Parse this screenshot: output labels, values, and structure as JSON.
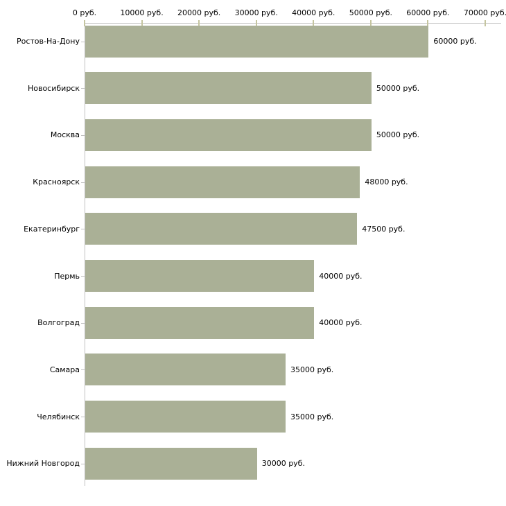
{
  "chart_data": {
    "type": "bar",
    "orientation": "horizontal",
    "title": "",
    "xlabel": "",
    "ylabel": "",
    "unit": "руб.",
    "grid": false,
    "legend": "none",
    "categories": [
      "Ростов-На-Дону",
      "Новосибирск",
      "Москва",
      "Красноярск",
      "Екатеринбург",
      "Пермь",
      "Волгоград",
      "Самара",
      "Челябинск",
      "Нижний Новгород"
    ],
    "values": [
      60000,
      50000,
      50000,
      48000,
      47500,
      40000,
      40000,
      35000,
      35000,
      30000
    ],
    "value_labels": [
      "60000 руб.",
      "50000 руб.",
      "50000 руб.",
      "48000 руб.",
      "47500 руб.",
      "40000 руб.",
      "40000 руб.",
      "35000 руб.",
      "35000 руб.",
      "30000 руб."
    ],
    "x_axis": {
      "position": "top",
      "min": 0,
      "max": 70000,
      "tick_interval": 10000,
      "tick_values": [
        0,
        10000,
        20000,
        30000,
        40000,
        50000,
        60000,
        70000
      ],
      "tick_labels": [
        "0 руб.",
        "10000 руб.",
        "20000 руб.",
        "30000 руб.",
        "40000 руб.",
        "50000 руб.",
        "60000 руб.",
        "70000 руб."
      ]
    },
    "colors": {
      "bar": "#aab096",
      "axis_line": "#c0c0c0",
      "x_tick_mark": "#c5c5a0",
      "category_tick_mark": "#c0c0c0",
      "text": "#000000",
      "background": "#ffffff"
    }
  }
}
